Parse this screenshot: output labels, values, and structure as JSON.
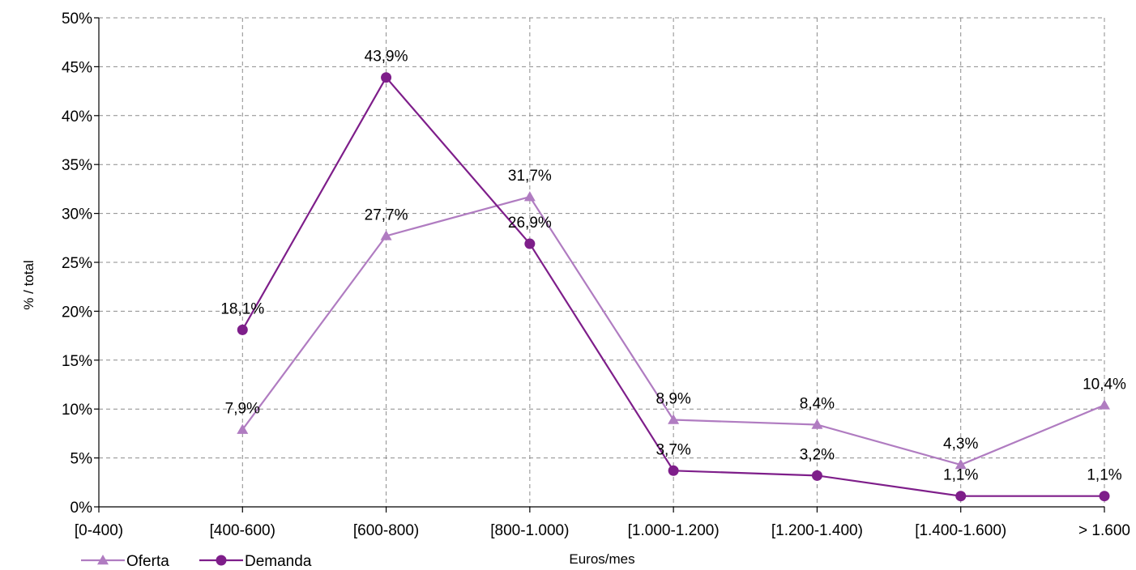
{
  "chart_data": {
    "type": "line",
    "categories": [
      "[0-400)",
      "[400-600)",
      "[600-800)",
      "[800-1.000)",
      "[1.000-1.200)",
      "[1.200-1.400)",
      "[1.400-1.600)",
      "> 1.600"
    ],
    "xlabel": "Euros/mes",
    "ylabel": "% / total",
    "ylim": [
      0,
      50
    ],
    "yticks": [
      0,
      5,
      10,
      15,
      20,
      25,
      30,
      35,
      40,
      45,
      50
    ],
    "ytick_labels": [
      "0%",
      "5%",
      "10%",
      "15%",
      "20%",
      "25%",
      "30%",
      "35%",
      "40%",
      "45%",
      "50%"
    ],
    "grid": true,
    "legend": "bottom-left",
    "series": [
      {
        "name": "Oferta",
        "color": "#b07cc1",
        "marker": "triangle",
        "values": [
          null,
          7.9,
          27.7,
          31.7,
          8.9,
          8.4,
          4.3,
          10.4
        ],
        "labels": [
          null,
          "7,9%",
          "27,7%",
          "31,7%",
          "8,9%",
          "8,4%",
          "4,3%",
          "10,4%"
        ]
      },
      {
        "name": "Demanda",
        "color": "#7e1e8a",
        "marker": "circle",
        "values": [
          null,
          18.1,
          43.9,
          26.9,
          3.7,
          3.2,
          1.1,
          1.1
        ],
        "labels": [
          null,
          "18,1%",
          "43,9%",
          "26,9%",
          "3,7%",
          "3,2%",
          "1,1%",
          "1,1%"
        ]
      }
    ]
  }
}
